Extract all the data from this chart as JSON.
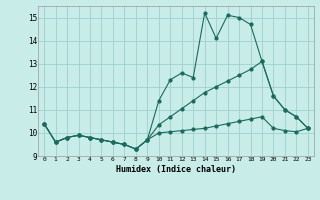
{
  "xlabel": "Humidex (Indice chaleur)",
  "bg_color": "#c8ece8",
  "grid_color": "#a0d0cc",
  "line_color": "#1a6b5a",
  "xlim": [
    -0.5,
    23.5
  ],
  "ylim": [
    9.0,
    15.5
  ],
  "yticks": [
    9,
    10,
    11,
    12,
    13,
    14,
    15
  ],
  "xticks": [
    0,
    1,
    2,
    3,
    4,
    5,
    6,
    7,
    8,
    9,
    10,
    11,
    12,
    13,
    14,
    15,
    16,
    17,
    18,
    19,
    20,
    21,
    22,
    23
  ],
  "series1": [
    10.4,
    9.6,
    9.8,
    9.9,
    9.8,
    9.7,
    9.6,
    9.5,
    9.3,
    9.7,
    11.4,
    12.3,
    12.6,
    12.4,
    15.2,
    14.1,
    15.1,
    15.0,
    14.7,
    13.1,
    11.6,
    11.0,
    10.7,
    10.2
  ],
  "series2": [
    10.4,
    9.6,
    9.8,
    9.9,
    9.8,
    9.7,
    9.6,
    9.5,
    9.3,
    9.7,
    10.35,
    10.7,
    11.05,
    11.4,
    11.75,
    12.0,
    12.25,
    12.5,
    12.75,
    13.1,
    11.6,
    11.0,
    10.7,
    10.2
  ],
  "series3": [
    10.4,
    9.6,
    9.8,
    9.9,
    9.8,
    9.7,
    9.6,
    9.5,
    9.3,
    9.7,
    10.0,
    10.05,
    10.1,
    10.15,
    10.2,
    10.3,
    10.4,
    10.5,
    10.6,
    10.7,
    10.2,
    10.1,
    10.05,
    10.2
  ]
}
